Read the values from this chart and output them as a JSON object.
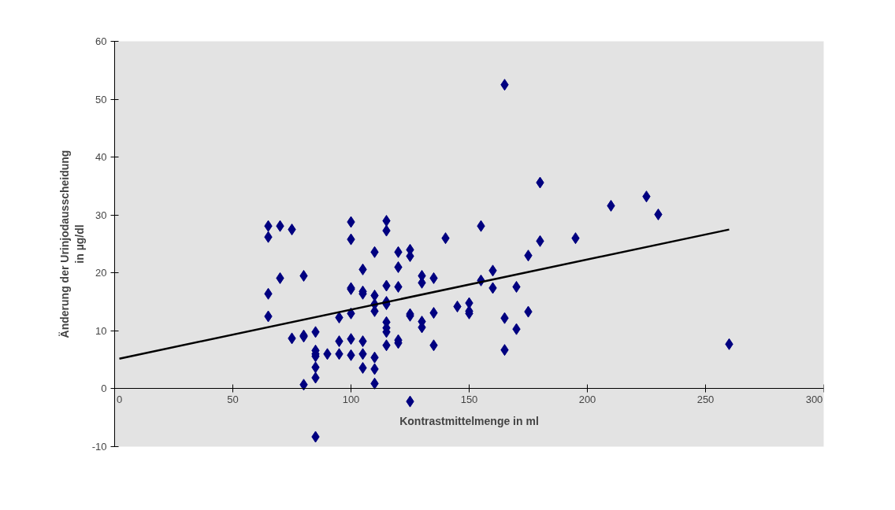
{
  "chart_data": {
    "type": "scatter",
    "xlabel": "Kontrastmittelmenge in ml",
    "ylabel": "Änderung der Urinjodausscheidung\nin µg/dl",
    "xlim": [
      0,
      300
    ],
    "ylim": [
      -10,
      60
    ],
    "xticks": [
      0,
      50,
      100,
      150,
      200,
      250,
      300
    ],
    "yticks": [
      -10,
      0,
      10,
      20,
      30,
      40,
      50,
      60
    ],
    "marker": "diamond",
    "series": [
      {
        "color": "#000080",
        "x": [
          65,
          65,
          65,
          65,
          70,
          70,
          75,
          75,
          80,
          80,
          80,
          80,
          85,
          85,
          85,
          85,
          85,
          85,
          85,
          90,
          95,
          95,
          95,
          100,
          100,
          100,
          100,
          100,
          100,
          100,
          105,
          105,
          105,
          105,
          105,
          105,
          110,
          110,
          110,
          110,
          110,
          110,
          110,
          115,
          115,
          115,
          115,
          115,
          115,
          115,
          115,
          115,
          120,
          120,
          120,
          120,
          120,
          125,
          125,
          125,
          125,
          125,
          130,
          130,
          130,
          130,
          135,
          135,
          135,
          140,
          145,
          150,
          150,
          150,
          155,
          155,
          160,
          160,
          165,
          165,
          165,
          170,
          170,
          175,
          175,
          180,
          180,
          195,
          210,
          225,
          230,
          260
        ],
        "values": [
          28.1,
          26.2,
          16.4,
          12.5,
          28.1,
          19.1,
          27.5,
          8.7,
          19.5,
          9.2,
          9.0,
          0.7,
          9.8,
          6.6,
          6.0,
          5.6,
          3.7,
          1.9,
          -8.3,
          6.0,
          12.3,
          8.2,
          6.0,
          28.8,
          25.8,
          17.4,
          17.2,
          13.0,
          8.6,
          5.8,
          20.6,
          16.8,
          16.4,
          8.2,
          6.0,
          3.6,
          23.6,
          16.1,
          14.6,
          13.4,
          5.4,
          3.4,
          0.9,
          29.0,
          27.3,
          17.8,
          15.0,
          14.6,
          11.5,
          10.5,
          9.8,
          7.5,
          23.6,
          21.0,
          17.6,
          8.4,
          7.9,
          24.0,
          22.9,
          12.9,
          12.6,
          -2.2,
          19.5,
          18.3,
          11.6,
          10.6,
          19.1,
          13.1,
          7.5,
          26.0,
          14.2,
          14.8,
          13.4,
          13.0,
          28.1,
          18.7,
          20.4,
          17.4,
          52.5,
          12.2,
          6.7,
          17.6,
          10.3,
          23.0,
          13.3,
          35.6,
          25.5,
          26.0,
          31.6,
          33.2,
          30.1,
          7.7
        ]
      },
      {
        "type": "line",
        "color": "#000000",
        "line_style": "solid",
        "marker": "none",
        "x": [
          2,
          260
        ],
        "values": [
          5.2,
          27.5
        ]
      }
    ]
  }
}
